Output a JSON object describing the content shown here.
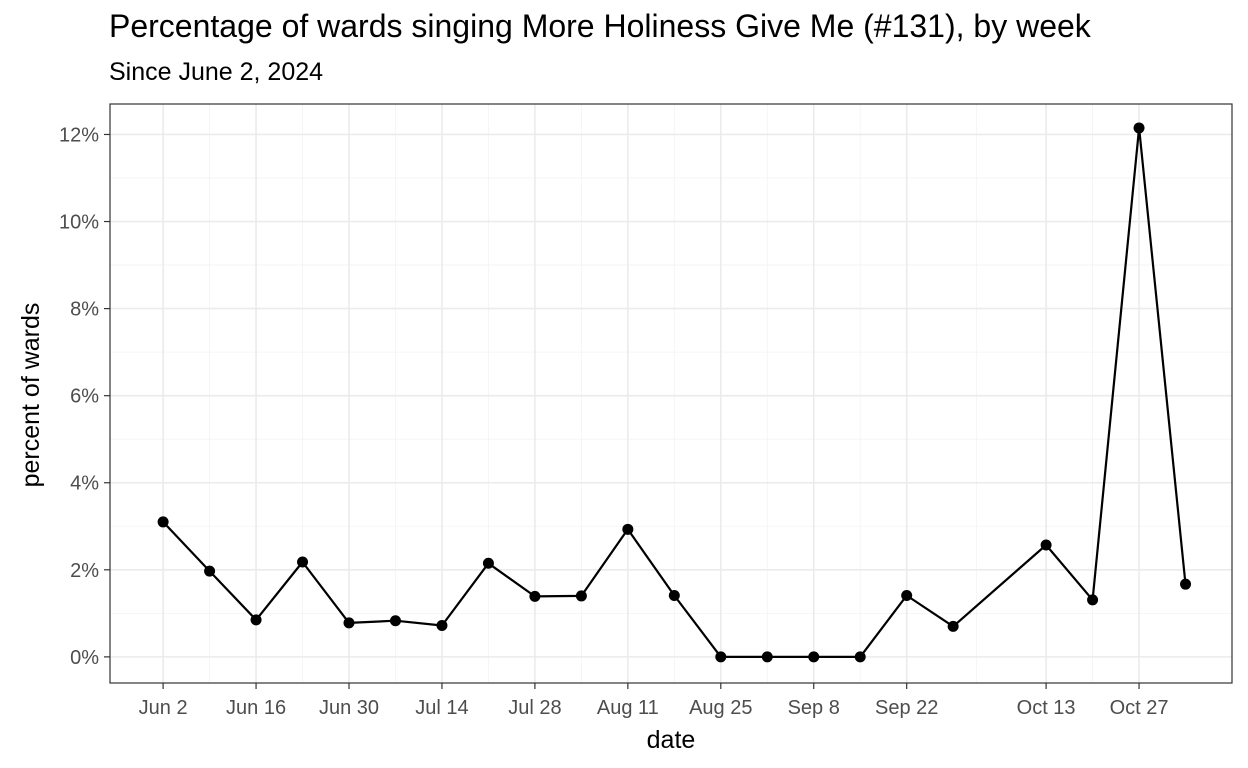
{
  "chart_data": {
    "type": "line",
    "title": "Percentage of wards singing More Holiness Give Me (#131), by week",
    "subtitle": "Since June 2, 2024",
    "xlabel": "date",
    "ylabel": "percent of wards",
    "x_ticks": [
      {
        "date": "2024-06-02",
        "label": "Jun 2"
      },
      {
        "date": "2024-06-16",
        "label": "Jun 16"
      },
      {
        "date": "2024-06-30",
        "label": "Jun 30"
      },
      {
        "date": "2024-07-14",
        "label": "Jul 14"
      },
      {
        "date": "2024-07-28",
        "label": "Jul 28"
      },
      {
        "date": "2024-08-11",
        "label": "Aug 11"
      },
      {
        "date": "2024-08-25",
        "label": "Aug 25"
      },
      {
        "date": "2024-09-08",
        "label": "Sep 8"
      },
      {
        "date": "2024-09-22",
        "label": "Sep 22"
      },
      {
        "date": "2024-10-13",
        "label": "Oct 13"
      },
      {
        "date": "2024-10-27",
        "label": "Oct 27"
      }
    ],
    "y_ticks": [
      {
        "value": 0,
        "label": "0%"
      },
      {
        "value": 2,
        "label": "2%"
      },
      {
        "value": 4,
        "label": "4%"
      },
      {
        "value": 6,
        "label": "6%"
      },
      {
        "value": 8,
        "label": "8%"
      },
      {
        "value": 10,
        "label": "10%"
      },
      {
        "value": 12,
        "label": "12%"
      }
    ],
    "ylim": [
      -0.6,
      12.7
    ],
    "xlim": [
      "2024-05-25",
      "2024-11-10"
    ],
    "grid": true,
    "series": [
      {
        "color": "#000000",
        "points": [
          {
            "x": "2024-06-02",
            "y": 3.1
          },
          {
            "x": "2024-06-09",
            "y": 1.97
          },
          {
            "x": "2024-06-16",
            "y": 0.85
          },
          {
            "x": "2024-06-23",
            "y": 2.18
          },
          {
            "x": "2024-06-30",
            "y": 0.78
          },
          {
            "x": "2024-07-07",
            "y": 0.83
          },
          {
            "x": "2024-07-14",
            "y": 0.72
          },
          {
            "x": "2024-07-21",
            "y": 2.15
          },
          {
            "x": "2024-07-28",
            "y": 1.39
          },
          {
            "x": "2024-08-04",
            "y": 1.4
          },
          {
            "x": "2024-08-11",
            "y": 2.93
          },
          {
            "x": "2024-08-18",
            "y": 1.41
          },
          {
            "x": "2024-08-25",
            "y": 0
          },
          {
            "x": "2024-09-01",
            "y": 0
          },
          {
            "x": "2024-09-08",
            "y": 0
          },
          {
            "x": "2024-09-15",
            "y": 0
          },
          {
            "x": "2024-09-22",
            "y": 1.41
          },
          {
            "x": "2024-09-29",
            "y": 0.7
          },
          {
            "x": "2024-10-13",
            "y": 2.57
          },
          {
            "x": "2024-10-20",
            "y": 1.31
          },
          {
            "x": "2024-10-27",
            "y": 12.15
          },
          {
            "x": "2024-11-03",
            "y": 1.67
          }
        ]
      }
    ]
  }
}
